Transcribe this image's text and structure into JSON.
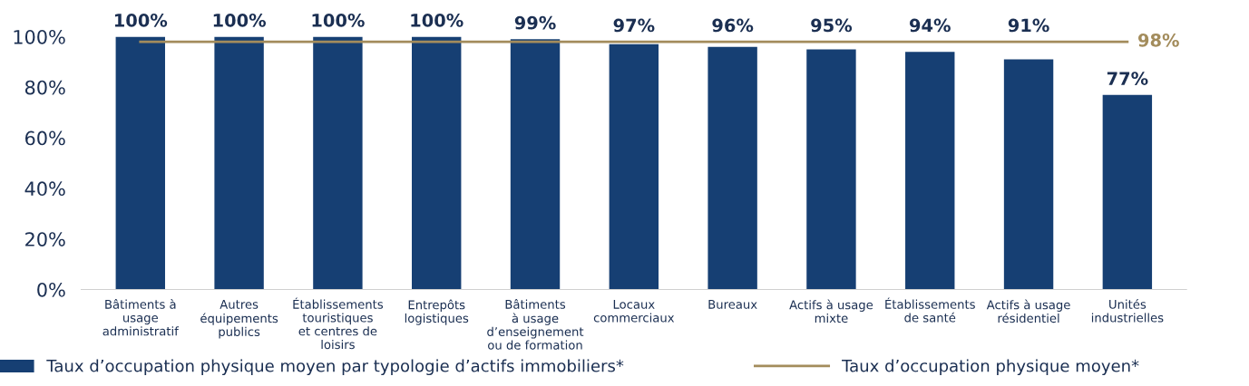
{
  "chart_data": {
    "type": "bar",
    "categories": [
      "Bâtiments à\nusage\nadministratif",
      "Autres\néquipements\npublics",
      "Établissements\ntouristiques\net centres de\nloisirs",
      "Entrepôts\nlogistiques",
      "Bâtiments\nà usage\nd’enseignement\nou de formation",
      "Locaux\ncommerciaux",
      "Bureaux",
      "Actifs à usage\nmixte",
      "Établissements\nde santé",
      "Actifs à usage\nrésidentiel",
      "Unités\nindustrielles"
    ],
    "series": [
      {
        "name": "Taux d’occupation physique moyen par typologie d’actifs immobiliers*",
        "color": "#163f73",
        "values": [
          100,
          100,
          100,
          100,
          99,
          97,
          96,
          95,
          94,
          91,
          77
        ],
        "value_labels": [
          "100%",
          "100%",
          "100%",
          "100%",
          "99%",
          "97%",
          "96%",
          "95%",
          "94%",
          "91%",
          "77%"
        ]
      },
      {
        "name": "Taux d’occupation physique moyen*",
        "type": "line",
        "color": "#a38c5c",
        "values": [
          98,
          98,
          98,
          98,
          98,
          98,
          98,
          98,
          98,
          98,
          98
        ],
        "value_labels": [
          null,
          null,
          null,
          null,
          null,
          null,
          null,
          null,
          null,
          null,
          "98%"
        ]
      }
    ],
    "ylim": [
      0,
      100
    ],
    "yticks": [
      {
        "value": 0,
        "label": "0%"
      },
      {
        "value": 20,
        "label": "20%"
      },
      {
        "value": 40,
        "label": "40%"
      },
      {
        "value": 60,
        "label": "60%"
      },
      {
        "value": 80,
        "label": "80%"
      },
      {
        "value": 100,
        "label": "100%"
      }
    ],
    "grid": false,
    "legend": "bottom"
  }
}
